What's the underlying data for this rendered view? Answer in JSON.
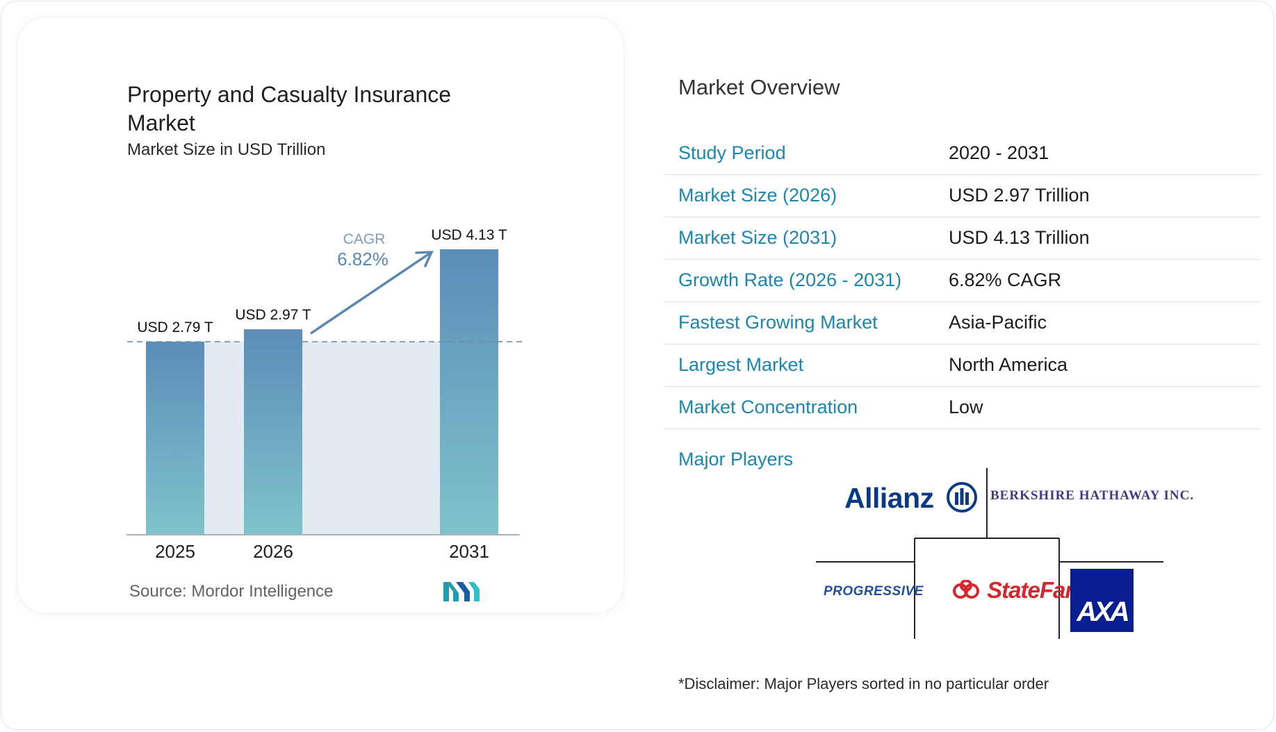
{
  "chart_data": {
    "type": "bar",
    "title": "Property and Casualty Insurance Market",
    "subtitle": "Market Size in USD Trillion",
    "categories": [
      "2025",
      "2026",
      "2031"
    ],
    "values": [
      2.79,
      2.97,
      4.13
    ],
    "data_labels": [
      "USD 2.79 T",
      "USD 2.97 T",
      "USD 4.13 T"
    ],
    "ylim": [
      0,
      4.13
    ],
    "grid": false,
    "cagr": {
      "label": "CAGR",
      "value": "6.82%"
    },
    "colors": {
      "bar_top": "#5b8db8",
      "bar_bottom": "#7fc2cb",
      "band": "#e3eaf2",
      "arrow": "#5a88b0"
    }
  },
  "source": "Source: Mordor Intelligence",
  "overview": {
    "title": "Market Overview",
    "rows": [
      {
        "label": "Study Period",
        "value": "2020 - 2031"
      },
      {
        "label": "Market Size (2026)",
        "value": "USD 2.97 Trillion"
      },
      {
        "label": "Market Size (2031)",
        "value": "USD 4.13 Trillion"
      },
      {
        "label": "Growth Rate (2026 - 2031)",
        "value": "6.82% CAGR"
      },
      {
        "label": "Fastest Growing Market",
        "value": "Asia-Pacific"
      },
      {
        "label": "Largest Market",
        "value": "North America"
      },
      {
        "label": "Market Concentration",
        "value": "Low"
      }
    ],
    "players_label": "Major Players",
    "players": [
      "Allianz",
      "Berkshire Hathaway Inc.",
      "Progressive",
      "StateFarm",
      "AXA"
    ],
    "disclaimer": "*Disclaimer: Major Players sorted in no particular order"
  },
  "colors": {
    "label_blue": "#1a86b2",
    "divider": "#dfe2e6"
  }
}
